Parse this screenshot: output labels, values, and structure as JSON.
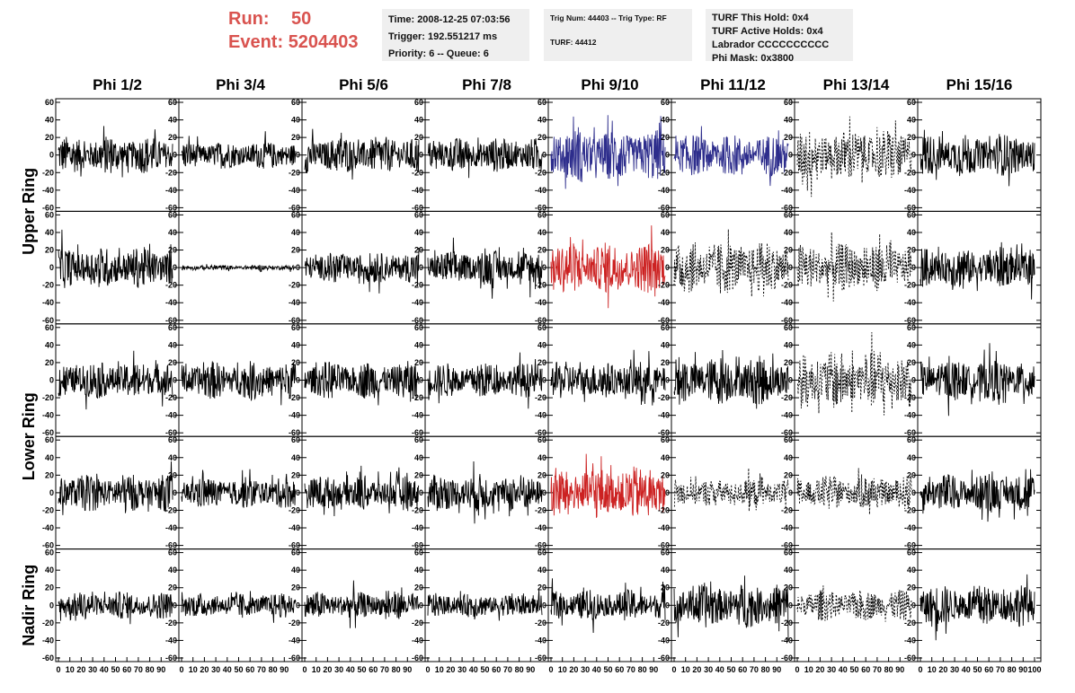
{
  "header": {
    "run_label": "Run:",
    "run_value": "50",
    "event_label": "Event:",
    "event_value": "5204403",
    "time": "Time: 2008-12-25 07:03:56",
    "trigger": "Trigger: 192.551217 ms",
    "priority": "Priority: 6 -- Queue: 6",
    "trig_num": "Trig Num: 44403 -- Trig Type: RF",
    "turf": "TURF: 44412",
    "turf_this_hold": "TURF This Hold: 0x4",
    "turf_active_holds": "TURF Active Holds: 0x4",
    "labrador": "Labrador CCCCCCCCCC",
    "phi_mask": "Phi Mask: 0x3800"
  },
  "columns": [
    "Phi 1/2",
    "Phi 3/4",
    "Phi 5/6",
    "Phi 7/8",
    "Phi 9/10",
    "Phi 11/12",
    "Phi 13/14",
    "Phi 15/16"
  ],
  "ring_labels": [
    "Upper Ring",
    "Lower Ring",
    "Nadir Ring"
  ],
  "colors": {
    "normal": "#000000",
    "blue": "#2d2d8c",
    "red": "#cc2222",
    "accent": "#d9534f"
  },
  "chart_data": {
    "type": "line",
    "xlim": [
      0,
      100
    ],
    "ylim": [
      -60,
      60
    ],
    "y_ticks": [
      "60",
      "40",
      "20",
      "0",
      "-20",
      "-40",
      "-60"
    ],
    "x_ticks": [
      "0",
      "10",
      "20",
      "30",
      "40",
      "50",
      "60",
      "70",
      "80",
      "90",
      "100"
    ],
    "grid": false,
    "rows": [
      {
        "cells": [
          {
            "style": "solid",
            "color": "normal",
            "amp": 22
          },
          {
            "style": "solid",
            "color": "normal",
            "amp": 16
          },
          {
            "style": "solid",
            "color": "normal",
            "amp": 22
          },
          {
            "style": "solid",
            "color": "normal",
            "amp": 20
          },
          {
            "style": "solid",
            "color": "blue",
            "amp": 30
          },
          {
            "style": "solid",
            "color": "blue",
            "amp": 24
          },
          {
            "style": "dashed",
            "color": "normal",
            "amp": 30
          },
          {
            "style": "solid",
            "color": "normal",
            "amp": 24
          }
        ]
      },
      {
        "cells": [
          {
            "style": "solid",
            "color": "normal",
            "amp": 24
          },
          {
            "style": "solid",
            "color": "normal",
            "amp": 3
          },
          {
            "style": "solid",
            "color": "normal",
            "amp": 18
          },
          {
            "style": "solid",
            "color": "normal",
            "amp": 20
          },
          {
            "style": "solid",
            "color": "red",
            "amp": 30
          },
          {
            "style": "dashed",
            "color": "normal",
            "amp": 30
          },
          {
            "style": "dashed",
            "color": "normal",
            "amp": 28
          },
          {
            "style": "solid",
            "color": "normal",
            "amp": 24
          }
        ]
      },
      {
        "cells": [
          {
            "style": "solid",
            "color": "normal",
            "amp": 22
          },
          {
            "style": "solid",
            "color": "normal",
            "amp": 22
          },
          {
            "style": "solid",
            "color": "normal",
            "amp": 22
          },
          {
            "style": "solid",
            "color": "normal",
            "amp": 20
          },
          {
            "style": "solid",
            "color": "normal",
            "amp": 22
          },
          {
            "style": "solid",
            "color": "normal",
            "amp": 28
          },
          {
            "style": "dashed",
            "color": "normal",
            "amp": 34
          },
          {
            "style": "solid",
            "color": "normal",
            "amp": 24
          }
        ]
      },
      {
        "cells": [
          {
            "style": "solid",
            "color": "normal",
            "amp": 22
          },
          {
            "style": "solid",
            "color": "normal",
            "amp": 18
          },
          {
            "style": "solid",
            "color": "normal",
            "amp": 20
          },
          {
            "style": "solid",
            "color": "normal",
            "amp": 22
          },
          {
            "style": "solid",
            "color": "red",
            "amp": 30
          },
          {
            "style": "dashed",
            "color": "normal",
            "amp": 16
          },
          {
            "style": "dashed",
            "color": "normal",
            "amp": 20
          },
          {
            "style": "solid",
            "color": "normal",
            "amp": 22
          }
        ]
      },
      {
        "cells": [
          {
            "style": "solid",
            "color": "normal",
            "amp": 16
          },
          {
            "style": "solid",
            "color": "normal",
            "amp": 14
          },
          {
            "style": "solid",
            "color": "normal",
            "amp": 16
          },
          {
            "style": "solid",
            "color": "normal",
            "amp": 14
          },
          {
            "style": "solid",
            "color": "normal",
            "amp": 18
          },
          {
            "style": "solid",
            "color": "normal",
            "amp": 26
          },
          {
            "style": "dashed",
            "color": "normal",
            "amp": 18
          },
          {
            "style": "solid",
            "color": "normal",
            "amp": 24
          }
        ]
      }
    ]
  }
}
